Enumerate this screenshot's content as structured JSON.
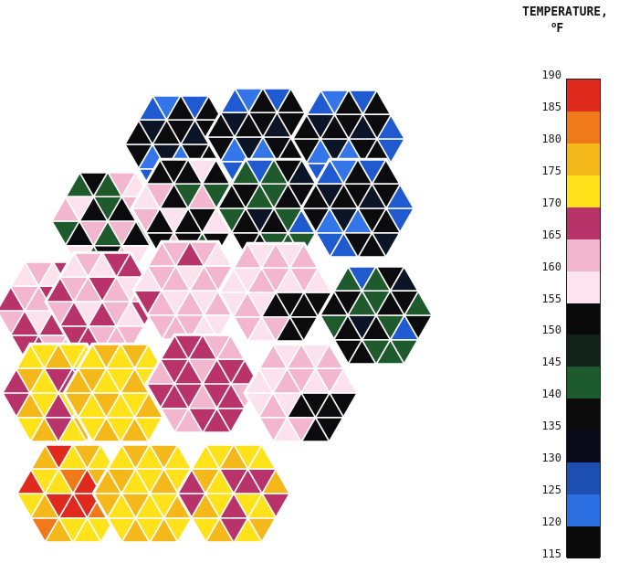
{
  "legend": {
    "title_line1": "TEMPERATURE,",
    "title_deg": "o",
    "title_unit": "F",
    "ticks": [
      "190",
      "185",
      "180",
      "175",
      "170",
      "165",
      "160",
      "155",
      "150",
      "145",
      "140",
      "135",
      "130",
      "125",
      "120",
      "115"
    ],
    "colors": [
      "#e02a1e",
      "#f07a1a",
      "#f5b81a",
      "#ffe21a",
      "#b8336a",
      "#f2b6cf",
      "#fbe4ee",
      "#0a0a0a",
      "#10221a",
      "#1d5a2e",
      "#0b0b0c",
      "#0a0b1a",
      "#1d4fb3",
      "#2b6fe3",
      "#0a0a0a"
    ]
  },
  "diagram": {
    "hexagons": [
      {
        "id": "r0c0",
        "scheme": "blue-dark"
      },
      {
        "id": "r0c1",
        "scheme": "blue-dark"
      },
      {
        "id": "r0c2",
        "scheme": "blue-dark"
      },
      {
        "id": "r1c0",
        "scheme": "green-pink"
      },
      {
        "id": "r1c1",
        "scheme": "dark-pink"
      },
      {
        "id": "r1c2",
        "scheme": "green-dark"
      },
      {
        "id": "r1c3",
        "scheme": "blue-dark"
      },
      {
        "id": "r2c0",
        "scheme": "pink-magenta"
      },
      {
        "id": "r2c1",
        "scheme": "pink-magenta"
      },
      {
        "id": "r2c2",
        "scheme": "pink"
      },
      {
        "id": "r2c3",
        "scheme": "dark-core"
      },
      {
        "id": "r2c4",
        "scheme": "green-dark"
      },
      {
        "id": "r3c0",
        "scheme": "yellow-magenta"
      },
      {
        "id": "r3c1",
        "scheme": "yellow"
      },
      {
        "id": "r3c2",
        "scheme": "magenta"
      },
      {
        "id": "r3c3",
        "scheme": "dark-core"
      },
      {
        "id": "r4c0",
        "scheme": "red-yellow"
      },
      {
        "id": "r4c1",
        "scheme": "yellow"
      },
      {
        "id": "r4c2",
        "scheme": "yellow-magenta"
      }
    ]
  }
}
